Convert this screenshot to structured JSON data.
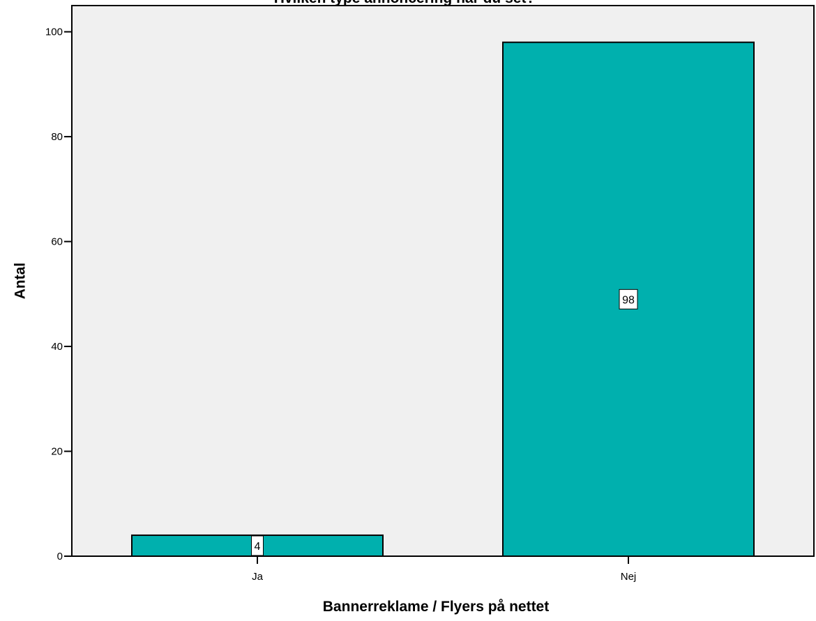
{
  "chart_data": {
    "type": "bar",
    "title": "Hvilken type annoncering har du set?",
    "xlabel": "Bannerreklame / Flyers på nettet",
    "ylabel": "Antal",
    "categories": [
      "Ja",
      "Nej"
    ],
    "values": [
      4,
      98
    ],
    "value_labels": [
      "4",
      "98"
    ],
    "ylim": [
      0,
      105
    ],
    "yticks": [
      0,
      20,
      40,
      60,
      80,
      100
    ],
    "grid": false,
    "legend": "none",
    "colors": {
      "bar": "#00b0ae",
      "plot_background": "#f0f0f0",
      "axis": "#000000"
    }
  }
}
